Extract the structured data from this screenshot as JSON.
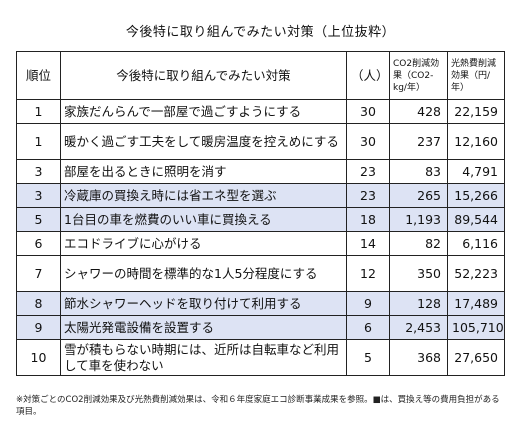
{
  "title": "今後特に取り組んでみたい対策（上位抜粋）",
  "table": {
    "headers": {
      "rank": "順位",
      "measure": "今後特に取り組んでみたい対策",
      "count": "（人）",
      "co2": "CO2削減効果（CO2-kg/年）",
      "cost": "光熱費削減効果（円/年）"
    },
    "rows": [
      {
        "rank": "1",
        "measure": "家族だんらんで一部屋で過ごすようにする",
        "count": "30",
        "co2": "428",
        "cost": "22,159",
        "shaded": false
      },
      {
        "rank": "1",
        "measure": "暖かく過ごす工夫をして暖房温度を控えめにする",
        "count": "30",
        "co2": "237",
        "cost": "12,160",
        "shaded": false
      },
      {
        "rank": "3",
        "measure": "部屋を出るときに照明を消す",
        "count": "23",
        "co2": "83",
        "cost": "4,791",
        "shaded": false
      },
      {
        "rank": "3",
        "measure": "冷蔵庫の買換え時には省エネ型を選ぶ",
        "count": "23",
        "co2": "265",
        "cost": "15,266",
        "shaded": true
      },
      {
        "rank": "5",
        "measure": "1台目の車を燃費のいい車に買換える",
        "count": "18",
        "co2": "1,193",
        "cost": "89,544",
        "shaded": true
      },
      {
        "rank": "6",
        "measure": "エコドライブに心がける",
        "count": "14",
        "co2": "82",
        "cost": "6,116",
        "shaded": false
      },
      {
        "rank": "7",
        "measure": "シャワーの時間を標準的な1人5分程度にする",
        "count": "12",
        "co2": "350",
        "cost": "52,223",
        "shaded": false
      },
      {
        "rank": "8",
        "measure": "節水シャワーヘッドを取り付けて利用する",
        "count": "9",
        "co2": "128",
        "cost": "17,489",
        "shaded": true
      },
      {
        "rank": "9",
        "measure": "太陽光発電設備を設置する",
        "count": "6",
        "co2": "2,453",
        "cost": "105,710",
        "shaded": true
      },
      {
        "rank": "10",
        "measure": "雪が積もらない時期には、近所は自転車など利用して車を使わない",
        "count": "5",
        "co2": "368",
        "cost": "27,650",
        "shaded": false
      }
    ]
  },
  "footnote": "※対策ごとのCO2削減効果及び光熱費削減効果は、令和６年度家庭エコ診断事業成果を参照。■は、買換え等の費用負担がある項目。",
  "colors": {
    "shade": "#dde3f4",
    "border": "#222222"
  }
}
